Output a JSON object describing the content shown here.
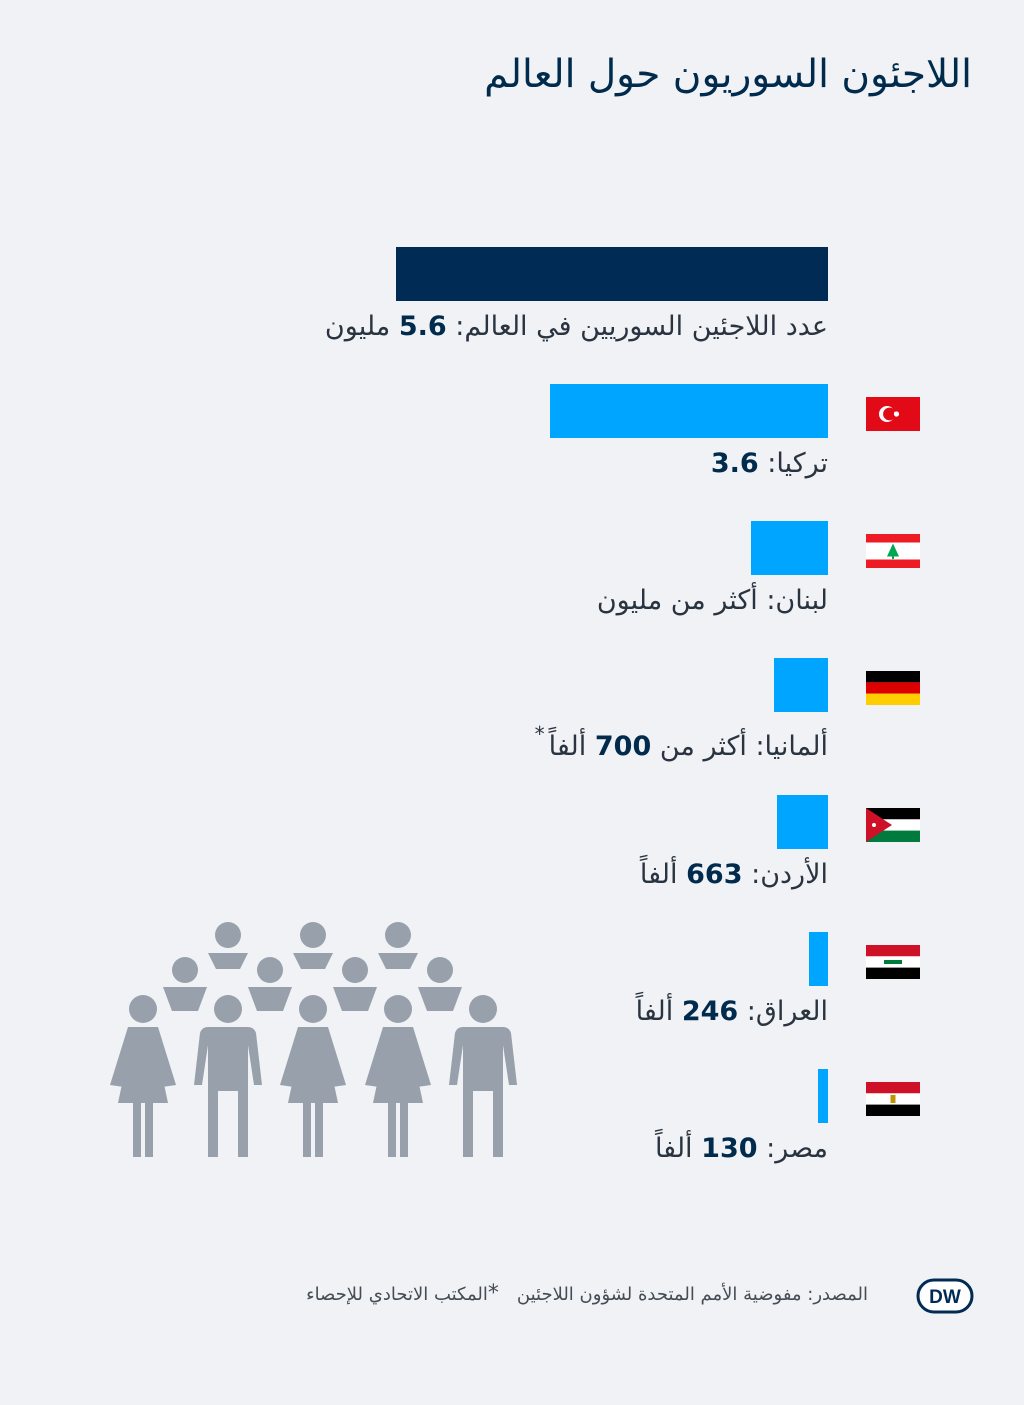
{
  "title": "اللاجئون السوريون حول العالم",
  "footer": {
    "source": "المصدر: مفوضية الأمم المتحدة لشؤون اللاجئين",
    "asterisk_note": "المكتب الاتحادي للإحصاء"
  },
  "logo_text": "DW",
  "colors": {
    "background": "#f0f2f5",
    "total_bar": "#002b55",
    "country_bar": "#00a5ff",
    "people": "#97a0ab",
    "title": "#002b4d"
  },
  "chart_data": {
    "type": "bar",
    "orientation": "horizontal",
    "unit": "مليون",
    "categories": [
      "العالم",
      "تركيا",
      "لبنان",
      "ألمانيا",
      "الأردن",
      "العراق",
      "مصر"
    ],
    "values": [
      5.6,
      3.6,
      1.0,
      0.7,
      0.663,
      0.246,
      0.13
    ],
    "labels": [
      {
        "prefix": "عدد اللاجئين السوريين في العالم:",
        "number": "5.6",
        "suffix": "مليون",
        "asterisk": ""
      },
      {
        "prefix": "تركيا:",
        "number": "3.6",
        "suffix": "",
        "asterisk": ""
      },
      {
        "prefix": "لبنان: أكثر من مليون",
        "number": "",
        "suffix": "",
        "asterisk": ""
      },
      {
        "prefix": "ألمانيا: أكثر من",
        "number": "700",
        "suffix": "ألفاً",
        "asterisk": "*"
      },
      {
        "prefix": "الأردن:",
        "number": "663",
        "suffix": "ألفاً",
        "asterisk": ""
      },
      {
        "prefix": "العراق:",
        "number": "246",
        "suffix": "ألفاً",
        "asterisk": ""
      },
      {
        "prefix": "مصر:",
        "number": "130",
        "suffix": "ألفاً",
        "asterisk": ""
      }
    ],
    "flags": [
      "",
      "turkey",
      "lebanon",
      "germany",
      "jordan",
      "iraq",
      "egypt"
    ],
    "xlim": [
      0,
      5.6
    ]
  }
}
